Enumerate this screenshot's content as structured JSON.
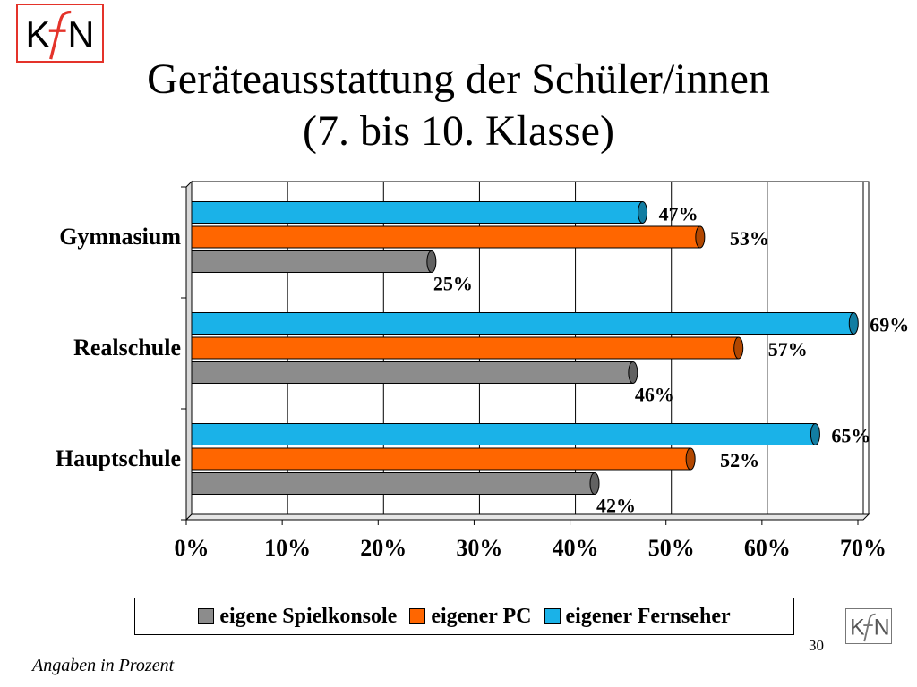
{
  "logo": {
    "text_left": "K",
    "text_right": "N",
    "color": "#e4332a"
  },
  "title_lines": [
    "Geräteausstattung der Schüler/innen",
    "(7. bis 10. Klasse)"
  ],
  "chart_data": {
    "type": "bar",
    "orientation": "horizontal",
    "categories": [
      "Gymnasium",
      "Realschule",
      "Hauptschule"
    ],
    "series": [
      {
        "name": "eigene Spielkonsole",
        "color": "#8c8c8c",
        "values": [
          25,
          46,
          42
        ],
        "labels": [
          "25%",
          "46%",
          "42%"
        ]
      },
      {
        "name": "eigener PC",
        "color": "#ff6600",
        "values": [
          53,
          57,
          52
        ],
        "labels": [
          "53%",
          "57%",
          "52%"
        ]
      },
      {
        "name": "eigener Fernseher",
        "color": "#1ab2e8",
        "values": [
          47,
          69,
          65
        ],
        "labels": [
          "47%",
          "69%",
          "65%"
        ]
      }
    ],
    "x_ticks": [
      "0%",
      "10%",
      "20%",
      "30%",
      "40%",
      "50%",
      "60%",
      "70%"
    ],
    "xlim": [
      0,
      70
    ],
    "grid": true,
    "legend_position": "bottom"
  },
  "legend": {
    "items": [
      {
        "label": "eigene Spielkonsole",
        "color": "#8c8c8c"
      },
      {
        "label": "eigener PC",
        "color": "#ff6600"
      },
      {
        "label": "eigener Fernseher",
        "color": "#1ab2e8"
      }
    ]
  },
  "page_number": "30",
  "footnote": "Angaben in Prozent"
}
